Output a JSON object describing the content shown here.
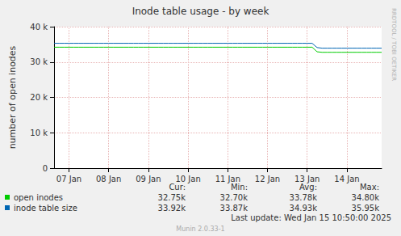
{
  "chart_data": {
    "type": "line",
    "title": "Inode table usage - by week",
    "y_label": "number of open inodes",
    "categories": [
      null,
      null,
      null,
      "07 Jan",
      null,
      null,
      null,
      null,
      null,
      null,
      null,
      "08 Jan",
      null,
      null,
      null,
      null,
      null,
      null,
      null,
      "09 Jan",
      null,
      null,
      null,
      null,
      null,
      null,
      null,
      "10 Jan",
      null,
      null,
      null,
      null,
      null,
      null,
      null,
      "11 Jan",
      null,
      null,
      null,
      null,
      null,
      null,
      null,
      "12 Jan",
      null,
      null,
      null,
      null,
      null,
      null,
      null,
      "13 Jan",
      null,
      null,
      null,
      null,
      null,
      null,
      null,
      "14 Jan",
      null,
      null,
      null,
      null,
      null,
      null,
      null
    ],
    "series": [
      {
        "name": "open inodes",
        "color": "#00cc00",
        "values": [
          34200,
          34200,
          34200,
          34200,
          34200,
          34200,
          34200,
          34200,
          34200,
          34200,
          34200,
          34200,
          34200,
          34200,
          34200,
          34200,
          34200,
          34200,
          34200,
          34200,
          34200,
          34200,
          34200,
          34200,
          34200,
          34200,
          34200,
          34200,
          34200,
          34200,
          34200,
          34200,
          34200,
          34200,
          34200,
          34200,
          34200,
          34200,
          34200,
          34200,
          34200,
          34200,
          34200,
          34200,
          34200,
          34200,
          34200,
          34200,
          34200,
          34200,
          34200,
          34200,
          34200,
          32900,
          32750,
          32750,
          32750,
          32750,
          32750,
          32750,
          32750,
          32750,
          32750,
          32750,
          32750,
          32750,
          32750
        ],
        "summary": [
          "32.75k",
          "32.70k",
          "33.78k",
          "34.80k"
        ]
      },
      {
        "name": "inode table size",
        "color": "#0066b3",
        "values": [
          35300,
          35300,
          35300,
          35300,
          35300,
          35300,
          35300,
          35300,
          35300,
          35300,
          35300,
          35300,
          35300,
          35300,
          35300,
          35300,
          35300,
          35300,
          35300,
          35300,
          35300,
          35300,
          35300,
          35300,
          35300,
          35300,
          35300,
          35300,
          35300,
          35300,
          35300,
          35300,
          35300,
          35300,
          35300,
          35300,
          35300,
          35300,
          35300,
          35300,
          35300,
          35300,
          35300,
          35300,
          35300,
          35300,
          35300,
          35300,
          35300,
          35300,
          35300,
          35300,
          35300,
          34100,
          33920,
          33920,
          33920,
          33920,
          33920,
          33920,
          33920,
          33920,
          33920,
          33920,
          33920,
          33920,
          33920
        ],
        "summary": [
          "33.92k",
          "33.87k",
          "34.93k",
          "35.95k"
        ]
      }
    ],
    "summary_columns": [
      "Cur:",
      "Min:",
      "Avg:",
      "Max:"
    ],
    "ylim": [
      0,
      40000
    ],
    "yticks": [
      0,
      {
        "value": 10000,
        "label": "10 k"
      },
      {
        "value": 20000,
        "label": "20 k"
      },
      {
        "value": 30000,
        "label": "30 k"
      },
      {
        "value": 40000,
        "label": "40 k"
      }
    ],
    "grid": true,
    "footer": "Last update: Wed Jan 15 10:50:00 2025",
    "credit": "Munin 2.0.33-1",
    "watermark": "RRDTOOL / TOBI OETIKER"
  }
}
